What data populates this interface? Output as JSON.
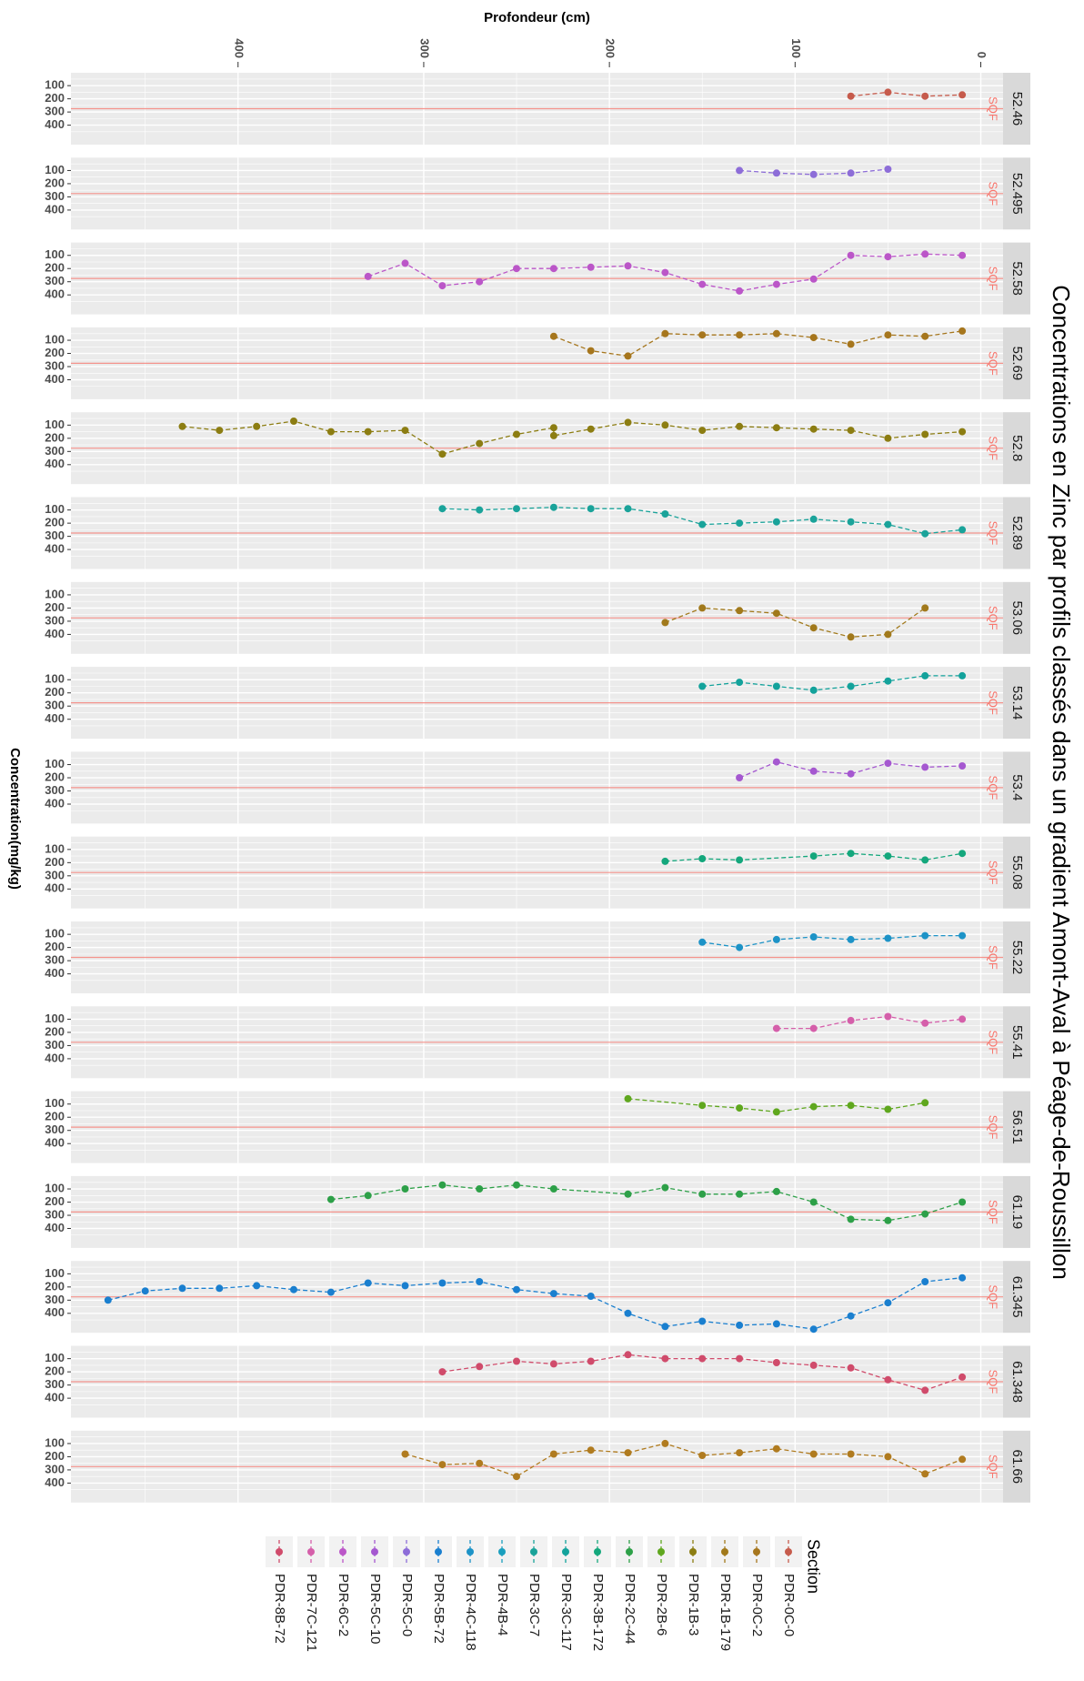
{
  "chart_data": {
    "type": "line",
    "title": "Concentrations en Zinc par profils classés dans un gradient Amont-Aval à Péage-de-Roussillon",
    "xlabel": "Profondeur (cm)",
    "ylabel": "Concentration(mg/kg)",
    "x_ticks": [
      "400",
      "300",
      "200",
      "100",
      "0"
    ],
    "y_ticks": [
      "100",
      "200",
      "300",
      "400"
    ],
    "threshold": {
      "value": 275,
      "label": "SQF",
      "color": "#f8766d"
    },
    "legend": {
      "title": "Section",
      "position": "bottom"
    },
    "panels": [
      {
        "label": "52.46",
        "series": "PDR-0C-0",
        "color": "#C65B4C",
        "points": [
          [
            70,
            180
          ],
          [
            50,
            150
          ],
          [
            30,
            180
          ],
          [
            10,
            170
          ]
        ]
      },
      {
        "label": "52.495",
        "series": "PDR-5C-0",
        "color": "#8D6DD8",
        "points": [
          [
            130,
            100
          ],
          [
            110,
            120
          ],
          [
            90,
            130
          ],
          [
            70,
            120
          ],
          [
            50,
            90
          ]
        ]
      },
      {
        "label": "52.58",
        "series": "PDR-6C-2",
        "color": "#BB56C8",
        "points": [
          [
            330,
            260
          ],
          [
            310,
            160
          ],
          [
            290,
            330
          ],
          [
            270,
            300
          ],
          [
            250,
            200
          ],
          [
            230,
            200
          ],
          [
            210,
            190
          ],
          [
            190,
            180
          ],
          [
            170,
            230
          ],
          [
            150,
            320
          ],
          [
            130,
            370
          ],
          [
            110,
            320
          ],
          [
            90,
            280
          ],
          [
            70,
            100
          ],
          [
            50,
            110
          ],
          [
            30,
            90
          ],
          [
            10,
            100
          ]
        ]
      },
      {
        "label": "52.69",
        "series": "PDR-0C-2",
        "color": "#A6761D",
        "points": [
          [
            230,
            70
          ],
          [
            210,
            180
          ],
          [
            190,
            220
          ],
          [
            170,
            50
          ],
          [
            150,
            60
          ],
          [
            130,
            60
          ],
          [
            110,
            50
          ],
          [
            90,
            80
          ],
          [
            70,
            130
          ],
          [
            50,
            60
          ],
          [
            30,
            70
          ],
          [
            10,
            30
          ]
        ]
      },
      {
        "label": "52.8",
        "series": "PDR-1B-3",
        "color": "#8C7D12",
        "points": [
          [
            430,
            110
          ],
          [
            410,
            140
          ],
          [
            390,
            110
          ],
          [
            370,
            70
          ],
          [
            350,
            150
          ],
          [
            330,
            150
          ],
          [
            310,
            140
          ],
          [
            290,
            320
          ],
          [
            270,
            240
          ],
          [
            250,
            170
          ],
          [
            230,
            120
          ],
          [
            230,
            180
          ],
          [
            210,
            130
          ],
          [
            190,
            80
          ],
          [
            170,
            100
          ],
          [
            150,
            140
          ],
          [
            130,
            110
          ],
          [
            110,
            120
          ],
          [
            90,
            130
          ],
          [
            70,
            140
          ],
          [
            50,
            200
          ],
          [
            30,
            170
          ],
          [
            10,
            150
          ]
        ]
      },
      {
        "label": "52.89",
        "series": "PDR-3C-7",
        "color": "#1AA39A",
        "points": [
          [
            290,
            90
          ],
          [
            270,
            100
          ],
          [
            250,
            90
          ],
          [
            230,
            80
          ],
          [
            210,
            90
          ],
          [
            190,
            90
          ],
          [
            170,
            130
          ],
          [
            150,
            210
          ],
          [
            130,
            200
          ],
          [
            110,
            190
          ],
          [
            90,
            170
          ],
          [
            70,
            190
          ],
          [
            50,
            210
          ],
          [
            30,
            280
          ],
          [
            10,
            250
          ]
        ]
      },
      {
        "label": "53.06",
        "series": "PDR-1B-179",
        "color": "#A1791B",
        "points": [
          [
            170,
            310
          ],
          [
            150,
            200
          ],
          [
            130,
            220
          ],
          [
            110,
            240
          ],
          [
            90,
            350
          ],
          [
            70,
            420
          ],
          [
            50,
            400
          ],
          [
            30,
            200
          ]
        ]
      },
      {
        "label": "53.14",
        "series": "PDR-3C-117",
        "color": "#13A29B",
        "points": [
          [
            150,
            150
          ],
          [
            130,
            120
          ],
          [
            110,
            150
          ],
          [
            90,
            180
          ],
          [
            70,
            150
          ],
          [
            50,
            110
          ],
          [
            30,
            70
          ],
          [
            10,
            70
          ]
        ]
      },
      {
        "label": "53.4",
        "series": "PDR-5C-10",
        "color": "#A558D0",
        "points": [
          [
            130,
            200
          ],
          [
            110,
            80
          ],
          [
            90,
            150
          ],
          [
            70,
            170
          ],
          [
            50,
            90
          ],
          [
            30,
            120
          ],
          [
            10,
            110
          ]
        ]
      },
      {
        "label": "55.08",
        "series": "PDR-3B-172",
        "color": "#14A77C",
        "points": [
          [
            170,
            190
          ],
          [
            150,
            170
          ],
          [
            130,
            180
          ],
          [
            90,
            150
          ],
          [
            70,
            130
          ],
          [
            50,
            150
          ],
          [
            30,
            180
          ],
          [
            10,
            130
          ]
        ]
      },
      {
        "label": "55.22",
        "series": "PDR-4C-118",
        "color": "#1D93C7",
        "points": [
          [
            150,
            160
          ],
          [
            130,
            200
          ],
          [
            110,
            140
          ],
          [
            90,
            120
          ],
          [
            70,
            140
          ],
          [
            50,
            130
          ],
          [
            30,
            110
          ],
          [
            10,
            110
          ]
        ]
      },
      {
        "label": "55.41",
        "series": "PDR-7C-121",
        "color": "#D55FAA",
        "points": [
          [
            110,
            170
          ],
          [
            90,
            170
          ],
          [
            70,
            110
          ],
          [
            50,
            80
          ],
          [
            30,
            130
          ],
          [
            10,
            100
          ]
        ]
      },
      {
        "label": "56.51",
        "series": "PDR-2B-6",
        "color": "#5FA71E",
        "points": [
          [
            190,
            60
          ],
          [
            150,
            110
          ],
          [
            130,
            130
          ],
          [
            110,
            160
          ],
          [
            90,
            120
          ],
          [
            70,
            110
          ],
          [
            50,
            140
          ],
          [
            30,
            90
          ]
        ]
      },
      {
        "label": "61.19",
        "series": "PDR-2C-44",
        "color": "#2DA048",
        "points": [
          [
            350,
            180
          ],
          [
            330,
            150
          ],
          [
            310,
            100
          ],
          [
            290,
            70
          ],
          [
            270,
            100
          ],
          [
            250,
            70
          ],
          [
            230,
            100
          ],
          [
            190,
            140
          ],
          [
            170,
            90
          ],
          [
            150,
            140
          ],
          [
            130,
            140
          ],
          [
            110,
            120
          ],
          [
            90,
            200
          ],
          [
            70,
            330
          ],
          [
            50,
            340
          ],
          [
            30,
            290
          ],
          [
            10,
            200
          ]
        ]
      },
      {
        "label": "61.345",
        "series": "PDR-5B-72",
        "color": "#1A7FCF",
        "points": [
          [
            470,
            300
          ],
          [
            450,
            230
          ],
          [
            430,
            210
          ],
          [
            410,
            210
          ],
          [
            390,
            190
          ],
          [
            370,
            220
          ],
          [
            350,
            240
          ],
          [
            330,
            170
          ],
          [
            310,
            190
          ],
          [
            290,
            170
          ],
          [
            270,
            160
          ],
          [
            250,
            220
          ],
          [
            230,
            250
          ],
          [
            210,
            270
          ],
          [
            190,
            400
          ],
          [
            170,
            500
          ],
          [
            150,
            460
          ],
          [
            130,
            490
          ],
          [
            110,
            480
          ],
          [
            90,
            520
          ],
          [
            70,
            420
          ],
          [
            50,
            320
          ],
          [
            30,
            160
          ],
          [
            10,
            130
          ]
        ]
      },
      {
        "label": "61.348",
        "series": "PDR-8B-72",
        "color": "#D04B6B",
        "points": [
          [
            290,
            200
          ],
          [
            270,
            160
          ],
          [
            250,
            120
          ],
          [
            230,
            140
          ],
          [
            210,
            120
          ],
          [
            190,
            70
          ],
          [
            170,
            100
          ],
          [
            150,
            100
          ],
          [
            130,
            100
          ],
          [
            110,
            130
          ],
          [
            90,
            150
          ],
          [
            70,
            170
          ],
          [
            50,
            260
          ],
          [
            30,
            340
          ],
          [
            10,
            240
          ]
        ]
      },
      {
        "label": "61.66",
        "series": "PDR-0C-2",
        "color": "#B07B1F",
        "points": [
          [
            310,
            180
          ],
          [
            290,
            260
          ],
          [
            270,
            250
          ],
          [
            250,
            350
          ],
          [
            230,
            180
          ],
          [
            210,
            150
          ],
          [
            190,
            170
          ],
          [
            170,
            100
          ],
          [
            150,
            190
          ],
          [
            130,
            170
          ],
          [
            110,
            140
          ],
          [
            90,
            180
          ],
          [
            70,
            180
          ],
          [
            50,
            200
          ],
          [
            30,
            330
          ],
          [
            10,
            220
          ]
        ]
      }
    ],
    "legend_items": [
      {
        "label": "PDR-0C-0",
        "color": "#C65B4C"
      },
      {
        "label": "PDR-0C-2",
        "color": "#A6761D"
      },
      {
        "label": "PDR-1B-179",
        "color": "#A1791B"
      },
      {
        "label": "PDR-1B-3",
        "color": "#8C7D12"
      },
      {
        "label": "PDR-2B-6",
        "color": "#5FA71E"
      },
      {
        "label": "PDR-2C-44",
        "color": "#2DA048"
      },
      {
        "label": "PDR-3B-172",
        "color": "#14A77C"
      },
      {
        "label": "PDR-3C-117",
        "color": "#13A29B"
      },
      {
        "label": "PDR-3C-7",
        "color": "#1AA39A"
      },
      {
        "label": "PDR-4B-4",
        "color": "#1A9FBE"
      },
      {
        "label": "PDR-4C-118",
        "color": "#1D93C7"
      },
      {
        "label": "PDR-5B-72",
        "color": "#1A7FCF"
      },
      {
        "label": "PDR-5C-0",
        "color": "#8D6DD8"
      },
      {
        "label": "PDR-5C-10",
        "color": "#A558D0"
      },
      {
        "label": "PDR-6C-2",
        "color": "#BB56C8"
      },
      {
        "label": "PDR-7C-121",
        "color": "#D55FAA"
      },
      {
        "label": "PDR-8B-72",
        "color": "#D04B6B"
      }
    ]
  }
}
